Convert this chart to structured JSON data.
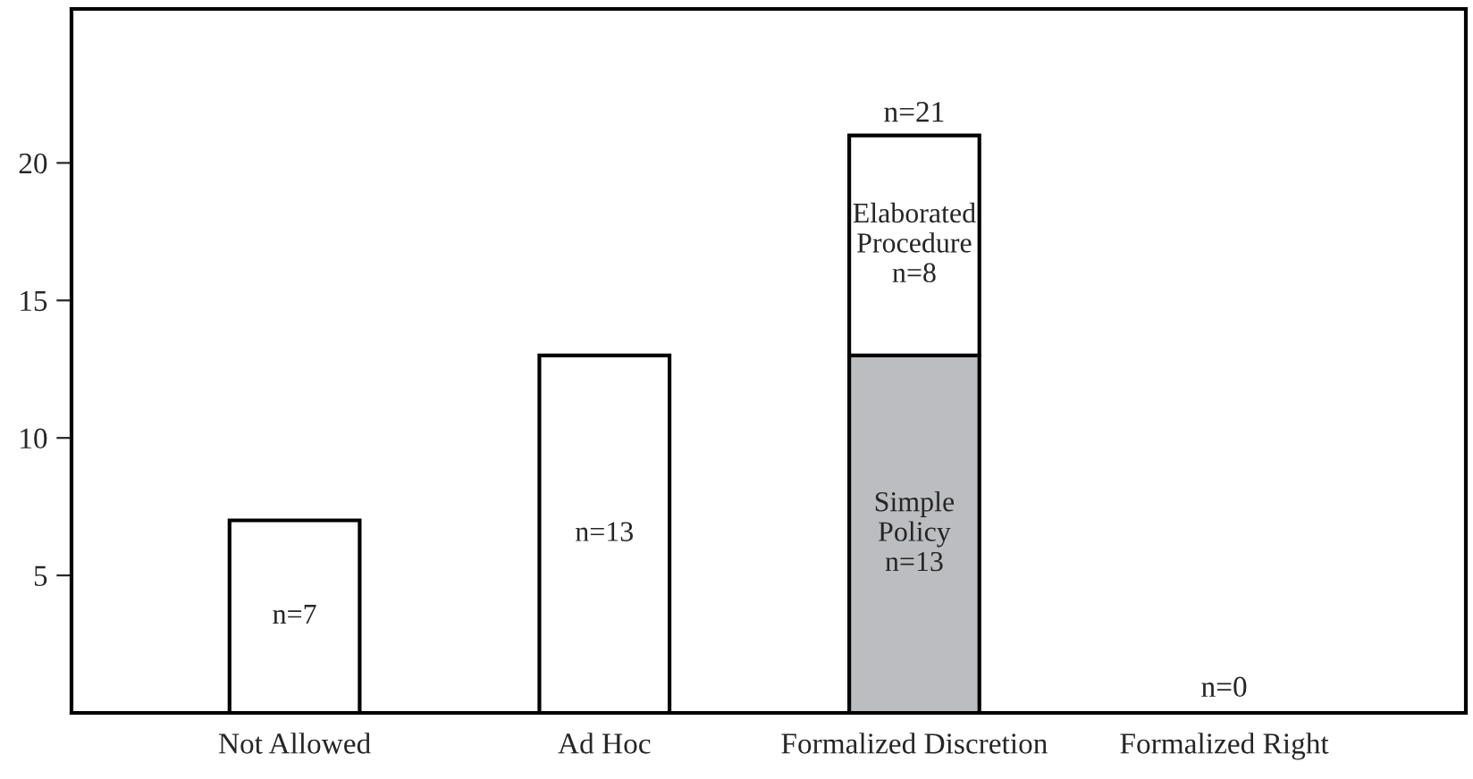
{
  "chart_data": {
    "type": "bar",
    "stacked": true,
    "categories": [
      "Not Allowed",
      "Ad Hoc",
      "Formalized Discretion",
      "Formalized Right"
    ],
    "series": [
      {
        "colors": [
          "#ffffff",
          "#ffffff",
          "#bcbdc0",
          "#ffffff"
        ],
        "values": [
          7,
          13,
          13,
          0
        ],
        "value_labels": [
          "n=7",
          "n=13",
          "Simple\nPolicy\nn=13",
          "n=0"
        ]
      },
      {
        "colors": [
          "#ffffff",
          "#ffffff",
          "#ffffff",
          "#ffffff"
        ],
        "values": [
          0,
          0,
          8,
          0
        ],
        "value_labels": [
          null,
          null,
          "Elaborated\nProcedure\nn=8",
          null
        ]
      }
    ],
    "totals": [
      null,
      null,
      "n=21",
      null
    ],
    "ylim": [
      0,
      25.6
    ],
    "yticks": [
      5,
      10,
      15,
      20
    ],
    "grid": false
  }
}
